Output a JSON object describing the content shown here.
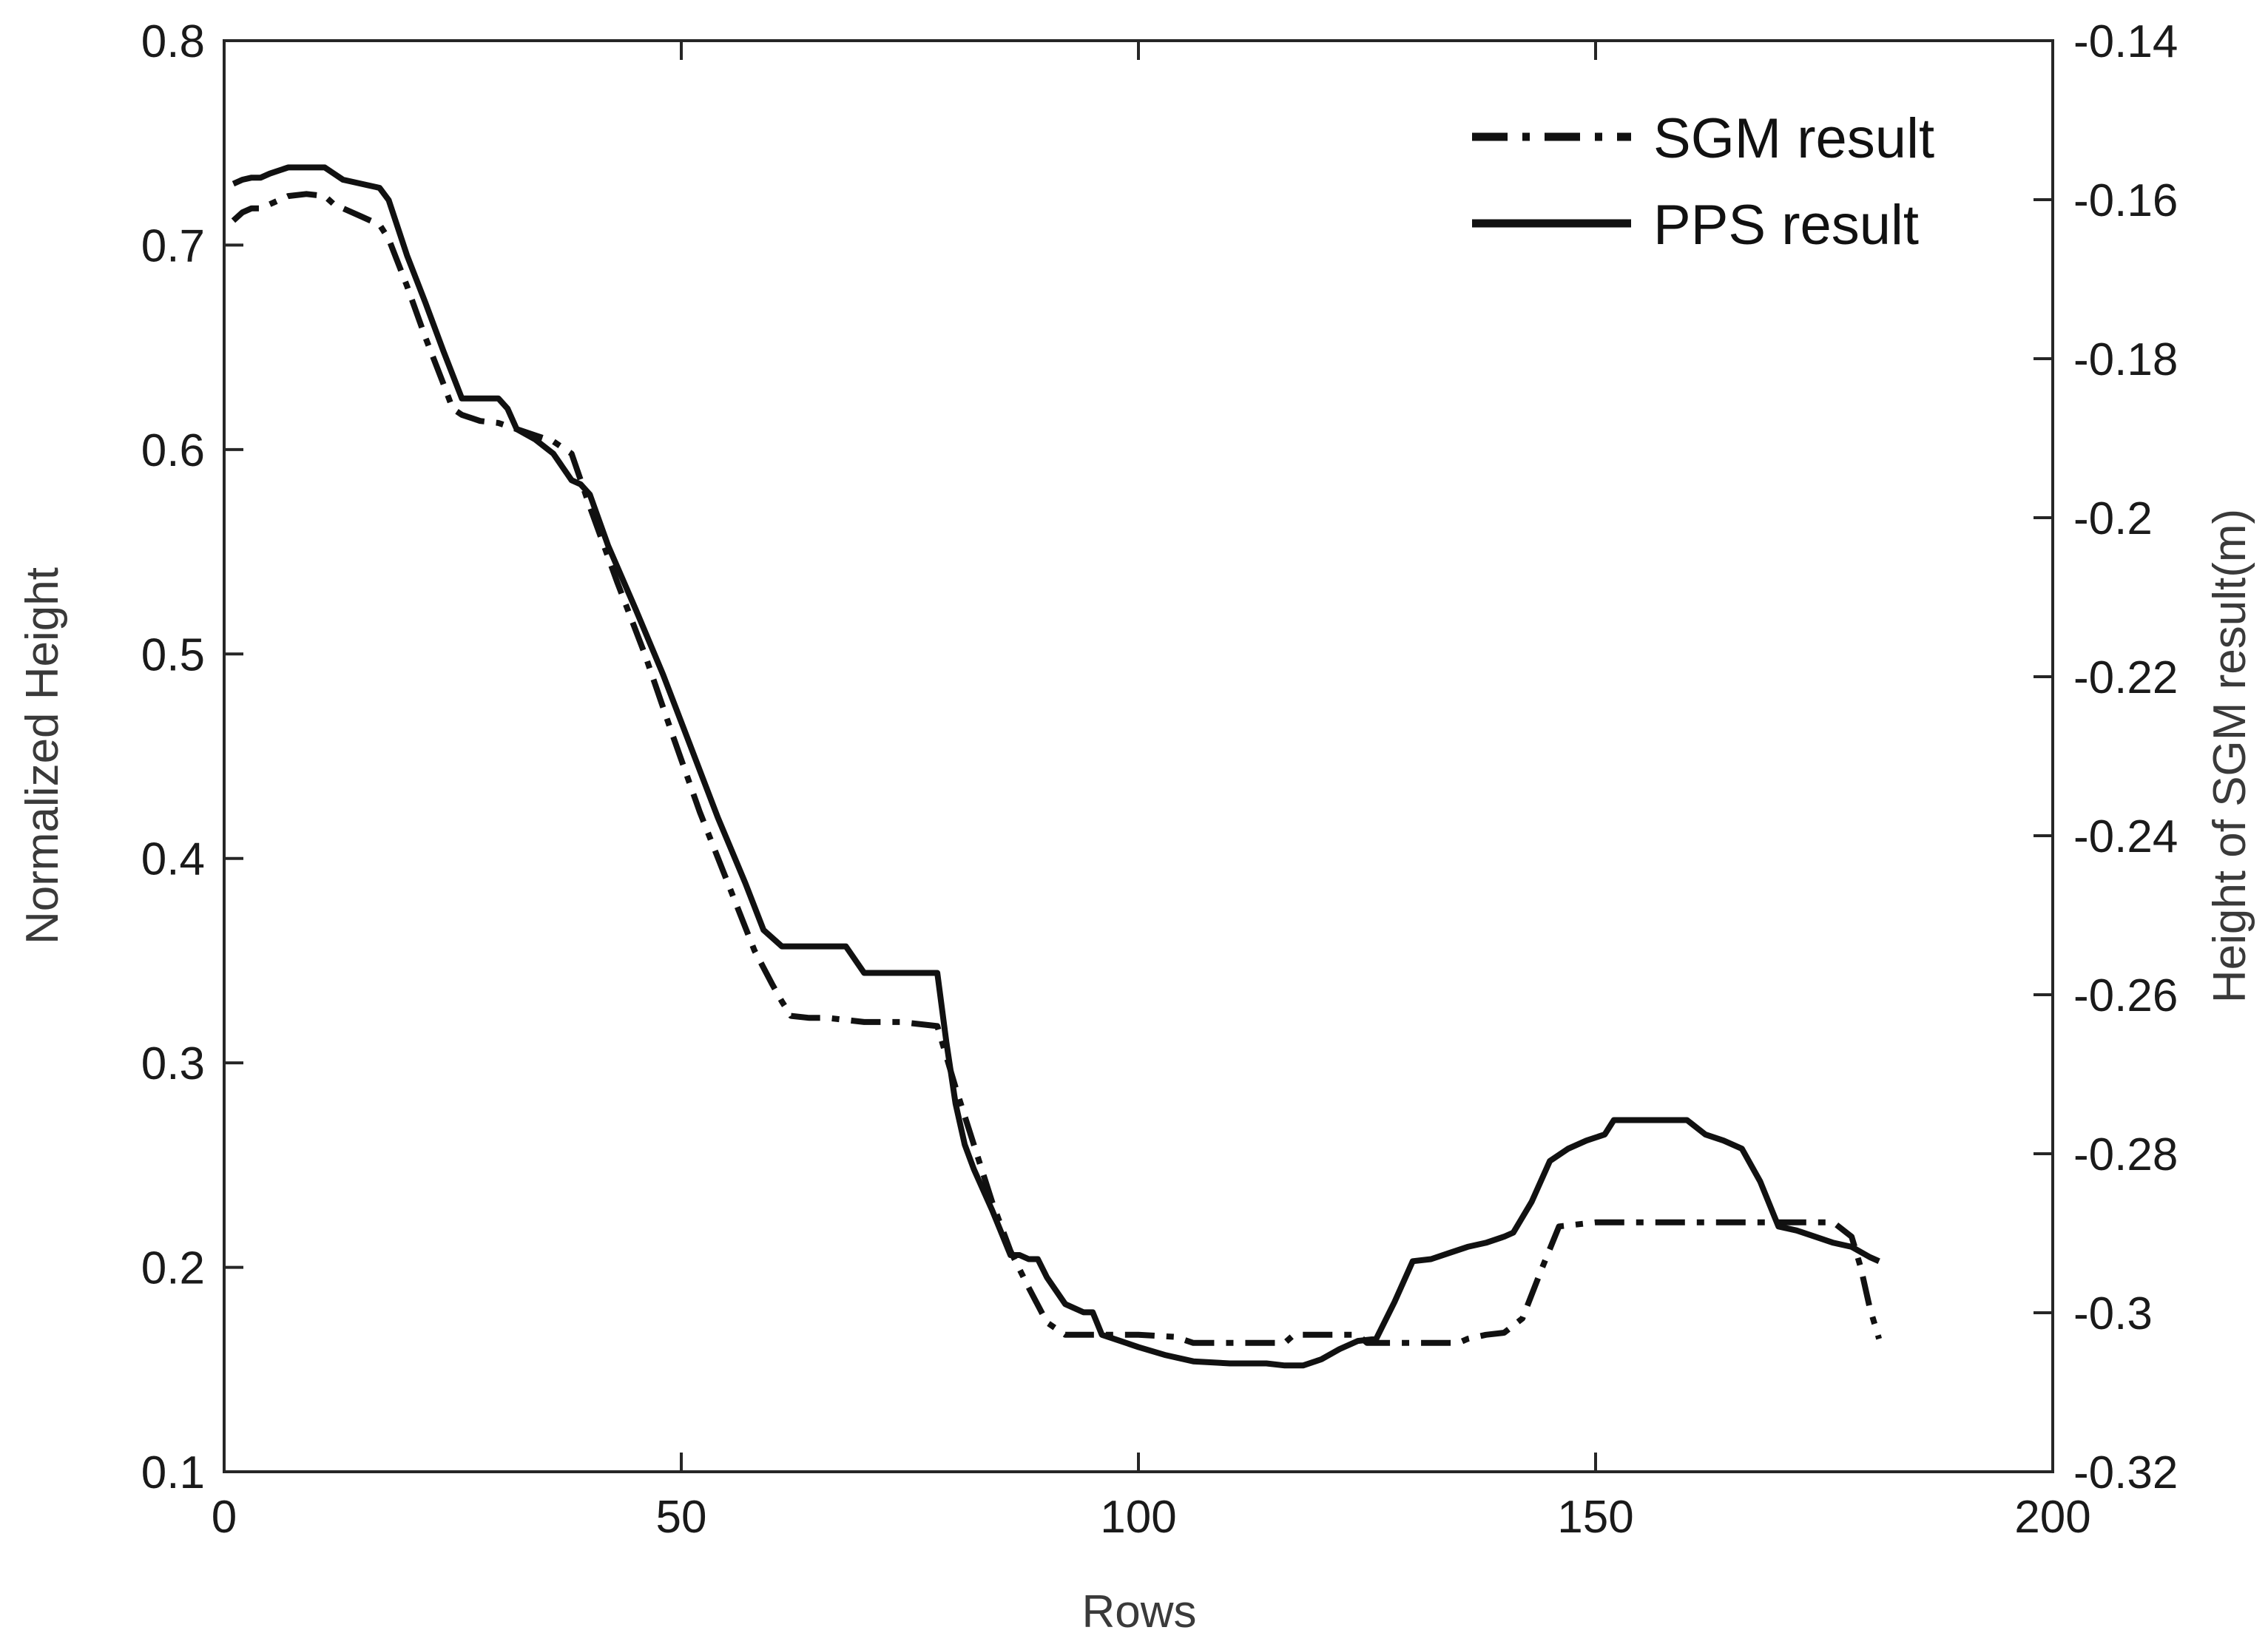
{
  "chart_data": {
    "type": "line",
    "title": "",
    "xlabel": "Rows",
    "ylabel": "Normalized Height",
    "y2label": "Height of SGM result(m)",
    "xlim": [
      0,
      200
    ],
    "ylim": [
      0.1,
      0.8
    ],
    "y2lim": [
      -0.32,
      -0.14
    ],
    "xticks": [
      0,
      50,
      100,
      150,
      200
    ],
    "xtick_labels": [
      "0",
      "50",
      "100",
      "150",
      "200"
    ],
    "yticks": [
      0.1,
      0.2,
      0.3,
      0.4,
      0.5,
      0.6,
      0.7,
      0.8
    ],
    "ytick_labels": [
      "0.1",
      "0.2",
      "0.3",
      "0.4",
      "0.5",
      "0.6",
      "0.7",
      "0.8"
    ],
    "y2ticks": [
      -0.32,
      -0.3,
      -0.28,
      -0.26,
      -0.24,
      -0.22,
      -0.2,
      -0.18,
      -0.16,
      -0.14
    ],
    "y2tick_labels": [
      "-0.32",
      "-0.3",
      "-0.28",
      "-0.26",
      "-0.24",
      "-0.22",
      "-0.2",
      "-0.18",
      "-0.16",
      "-0.14"
    ],
    "grid": false,
    "legend_position": "top-right",
    "series": [
      {
        "name": "SGM result",
        "style": "dash-dot",
        "axis": "left",
        "x": [
          1,
          2,
          3,
          4,
          5,
          7,
          9,
          11,
          12,
          13,
          15,
          17,
          18,
          20,
          22,
          24,
          25,
          26,
          28,
          30,
          32,
          34,
          36,
          38,
          40,
          43,
          46,
          49,
          52,
          55,
          58,
          60,
          61,
          62,
          64,
          66,
          68,
          70,
          74,
          78,
          80,
          82,
          84,
          86,
          88,
          90,
          92,
          95,
          100,
          104,
          106,
          110,
          116,
          117,
          120,
          124,
          125,
          130,
          134,
          135,
          136,
          138,
          140,
          142,
          144,
          146,
          150,
          155,
          160,
          165,
          170,
          172,
          176,
          178,
          179,
          180,
          181
        ],
        "y": [
          0.712,
          0.716,
          0.718,
          0.718,
          0.72,
          0.724,
          0.725,
          0.724,
          0.72,
          0.718,
          0.714,
          0.71,
          0.703,
          0.68,
          0.655,
          0.632,
          0.62,
          0.617,
          0.614,
          0.613,
          0.61,
          0.607,
          0.604,
          0.598,
          0.572,
          0.535,
          0.5,
          0.461,
          0.423,
          0.389,
          0.355,
          0.338,
          0.33,
          0.323,
          0.322,
          0.322,
          0.321,
          0.32,
          0.32,
          0.318,
          0.288,
          0.26,
          0.232,
          0.208,
          0.19,
          0.173,
          0.167,
          0.167,
          0.167,
          0.166,
          0.163,
          0.163,
          0.163,
          0.167,
          0.167,
          0.167,
          0.163,
          0.163,
          0.163,
          0.163,
          0.165,
          0.167,
          0.168,
          0.175,
          0.198,
          0.22,
          0.222,
          0.222,
          0.222,
          0.222,
          0.222,
          0.222,
          0.222,
          0.215,
          0.2,
          0.18,
          0.165
        ]
      },
      {
        "name": "PPS result",
        "style": "solid",
        "axis": "left",
        "x": [
          1,
          2,
          3,
          4,
          5,
          7,
          9,
          11,
          12,
          13,
          15,
          17,
          18,
          20,
          22,
          24,
          26,
          28,
          30,
          31,
          32,
          34,
          36,
          38,
          39,
          40,
          42,
          45,
          48,
          51,
          54,
          57,
          59,
          61,
          62,
          64,
          66,
          68,
          70,
          74,
          77,
          78,
          79,
          80,
          81,
          82,
          84,
          86,
          87,
          88,
          89,
          90,
          92,
          94,
          95,
          96,
          98,
          100,
          103,
          106,
          110,
          114,
          116,
          118,
          120,
          122,
          124,
          126,
          128,
          130,
          132,
          134,
          136,
          138,
          140,
          141,
          143,
          145,
          147,
          149,
          151,
          152,
          154,
          156,
          158,
          160,
          162,
          164,
          166,
          168,
          170,
          172,
          174,
          176,
          178,
          180,
          181
        ],
        "y": [
          0.73,
          0.732,
          0.733,
          0.733,
          0.735,
          0.738,
          0.738,
          0.738,
          0.735,
          0.732,
          0.73,
          0.728,
          0.722,
          0.695,
          0.672,
          0.648,
          0.625,
          0.625,
          0.625,
          0.62,
          0.61,
          0.605,
          0.598,
          0.585,
          0.583,
          0.578,
          0.553,
          0.522,
          0.49,
          0.455,
          0.42,
          0.388,
          0.365,
          0.357,
          0.357,
          0.357,
          0.357,
          0.357,
          0.344,
          0.344,
          0.344,
          0.344,
          0.31,
          0.28,
          0.26,
          0.248,
          0.228,
          0.206,
          0.206,
          0.204,
          0.204,
          0.195,
          0.182,
          0.178,
          0.178,
          0.167,
          0.164,
          0.161,
          0.157,
          0.154,
          0.153,
          0.153,
          0.152,
          0.152,
          0.155,
          0.16,
          0.164,
          0.165,
          0.183,
          0.203,
          0.204,
          0.207,
          0.21,
          0.212,
          0.215,
          0.217,
          0.232,
          0.252,
          0.258,
          0.262,
          0.265,
          0.272,
          0.272,
          0.272,
          0.272,
          0.272,
          0.265,
          0.262,
          0.258,
          0.242,
          0.22,
          0.218,
          0.215,
          0.212,
          0.21,
          0.205,
          0.203
        ]
      }
    ]
  }
}
